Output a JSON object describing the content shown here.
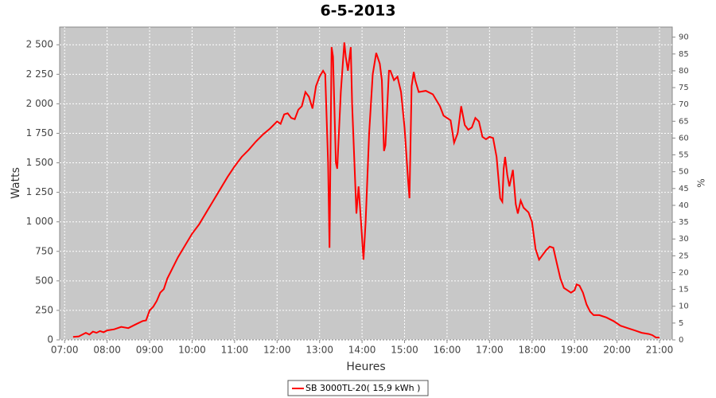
{
  "chart_data": {
    "type": "line",
    "title": "6-5-2013",
    "x_label": "Heures",
    "y_label": "Watts",
    "y2_label": "%",
    "grid": true,
    "legend": "bottom",
    "xlim": [
      "06:53",
      "21:18"
    ],
    "xticks": [
      "07:00",
      "08:00",
      "09:00",
      "10:00",
      "11:00",
      "12:00",
      "13:00",
      "14:00",
      "15:00",
      "16:00",
      "17:00",
      "18:00",
      "19:00",
      "20:00",
      "21:00"
    ],
    "ylim": [
      0,
      2650
    ],
    "yticks": [
      0,
      250,
      500,
      750,
      {
        "value": 1000,
        "label": "1 000"
      },
      {
        "value": 1250,
        "label": "1 250"
      },
      {
        "value": 1500,
        "label": "1 500"
      },
      {
        "value": 1750,
        "label": "1 750"
      },
      {
        "value": 2000,
        "label": "2 000"
      },
      {
        "value": 2250,
        "label": "2 250"
      },
      {
        "value": 2500,
        "label": "2 500"
      }
    ],
    "y2lim": [
      0,
      93
    ],
    "y2ticks": [
      0,
      5,
      10,
      15,
      20,
      25,
      30,
      35,
      40,
      45,
      50,
      55,
      60,
      65,
      70,
      75,
      80,
      85,
      90
    ],
    "x": [
      "07:12",
      "07:20",
      "07:30",
      "07:35",
      "07:40",
      "07:45",
      "07:50",
      "07:55",
      "08:00",
      "08:10",
      "08:20",
      "08:30",
      "08:40",
      "08:50",
      "08:55",
      "09:00",
      "09:05",
      "09:10",
      "09:15",
      "09:20",
      "09:25",
      "09:30",
      "09:40",
      "09:50",
      "10:00",
      "10:10",
      "10:20",
      "10:30",
      "10:40",
      "10:50",
      "11:00",
      "11:10",
      "11:20",
      "11:30",
      "11:40",
      "11:50",
      "12:00",
      "12:05",
      "12:10",
      "12:15",
      "12:20",
      "12:25",
      "12:30",
      "12:35",
      "12:40",
      "12:45",
      "12:50",
      "12:55",
      "13:00",
      "13:05",
      "13:08",
      "13:12",
      "13:14",
      "13:17",
      "13:19",
      "13:23",
      "13:25",
      "13:30",
      "13:35",
      "13:37",
      "13:40",
      "13:44",
      "13:46",
      "13:52",
      "13:55",
      "13:58",
      "14:02",
      "14:05",
      "14:10",
      "14:15",
      "14:20",
      "14:25",
      "14:28",
      "14:31",
      "14:33",
      "14:38",
      "14:40",
      "14:45",
      "14:50",
      "14:55",
      "15:00",
      "15:05",
      "15:07",
      "15:10",
      "15:13",
      "15:15",
      "15:20",
      "15:30",
      "15:40",
      "15:50",
      "15:55",
      "16:05",
      "16:10",
      "16:15",
      "16:20",
      "16:25",
      "16:30",
      "16:35",
      "16:40",
      "16:45",
      "16:50",
      "16:55",
      "17:00",
      "17:05",
      "17:10",
      "17:15",
      "17:18",
      "17:20",
      "17:22",
      "17:25",
      "17:28",
      "17:33",
      "17:37",
      "17:40",
      "17:44",
      "17:48",
      "17:55",
      "18:00",
      "18:05",
      "18:10",
      "18:15",
      "18:20",
      "18:25",
      "18:30",
      "18:35",
      "18:40",
      "18:45",
      "18:50",
      "18:55",
      "19:00",
      "19:03",
      "19:07",
      "19:12",
      "19:17",
      "19:22",
      "19:27",
      "19:35",
      "19:45",
      "19:55",
      "20:05",
      "20:15",
      "20:25",
      "20:35",
      "20:45",
      "20:50",
      "20:55",
      "21:00"
    ],
    "series": [
      {
        "name": "SB 3000TL-20( 15,9 kWh )",
        "color": "#ff0000",
        "values": [
          25,
          30,
          60,
          45,
          70,
          60,
          75,
          65,
          80,
          90,
          110,
          100,
          130,
          160,
          165,
          250,
          280,
          330,
          400,
          430,
          520,
          580,
          700,
          800,
          900,
          980,
          1080,
          1180,
          1280,
          1380,
          1470,
          1550,
          1610,
          1680,
          1740,
          1790,
          1850,
          1830,
          1910,
          1920,
          1880,
          1870,
          1950,
          1980,
          2100,
          2060,
          1960,
          2150,
          2230,
          2280,
          2250,
          1500,
          780,
          2480,
          2400,
          1500,
          1450,
          2100,
          2520,
          2400,
          2280,
          2480,
          2000,
          1070,
          1300,
          1050,
          680,
          1000,
          1750,
          2250,
          2430,
          2340,
          2200,
          1600,
          1650,
          2280,
          2280,
          2200,
          2230,
          2100,
          1800,
          1350,
          1200,
          2150,
          2270,
          2200,
          2100,
          2110,
          2080,
          1980,
          1900,
          1860,
          1670,
          1750,
          1980,
          1820,
          1780,
          1800,
          1880,
          1850,
          1720,
          1700,
          1720,
          1710,
          1550,
          1200,
          1170,
          1450,
          1550,
          1400,
          1300,
          1440,
          1150,
          1070,
          1180,
          1120,
          1080,
          1000,
          770,
          680,
          720,
          760,
          790,
          780,
          650,
          520,
          440,
          420,
          400,
          420,
          470,
          460,
          400,
          300,
          240,
          210,
          210,
          190,
          160,
          120,
          100,
          80,
          60,
          50,
          40,
          20,
          20
        ]
      }
    ]
  }
}
